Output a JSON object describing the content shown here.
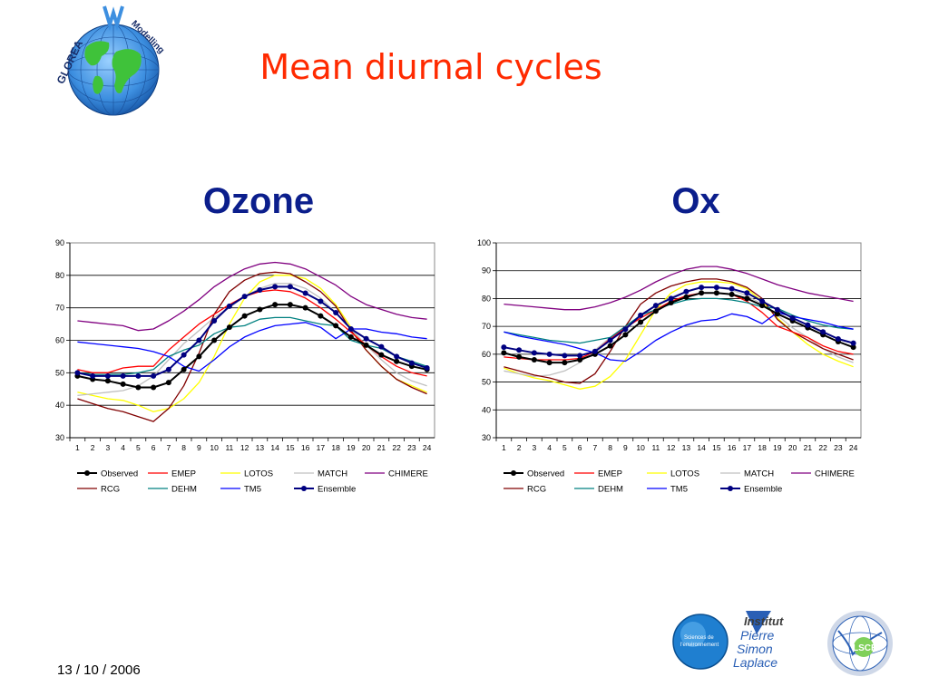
{
  "slide": {
    "title": "Mean diurnal cycles",
    "date": "13 / 10 / 2006",
    "logo_letters_left": "GLOREA",
    "logo_letters_right": "Modelling",
    "ipsl_line1": "Institut",
    "ipsl_line2": "Pierre",
    "ipsl_line3": "Simon",
    "ipsl_line4": "Laplace",
    "sde_text_1": "Sciences de",
    "sde_text_2": "l'environnement",
    "lsce_text": "LSCE"
  },
  "chart_data": [
    {
      "type": "line",
      "title": "Ozone",
      "categories": [
        "1",
        "2",
        "3",
        "4",
        "5",
        "6",
        "7",
        "8",
        "9",
        "10",
        "11",
        "12",
        "13",
        "14",
        "15",
        "16",
        "17",
        "18",
        "19",
        "20",
        "21",
        "22",
        "23",
        "24"
      ],
      "ylim": [
        30,
        90
      ],
      "yticks": [
        30,
        40,
        50,
        60,
        70,
        80,
        90
      ],
      "grid": true,
      "legend": "bottom",
      "series": [
        {
          "name": "Observed",
          "color": "#000000",
          "marker": true,
          "width": 2,
          "values": [
            49,
            48,
            47.5,
            46.5,
            45.5,
            45.5,
            47,
            51,
            55,
            60,
            64,
            67.5,
            69.5,
            71,
            71,
            70,
            67.5,
            64.5,
            61,
            58.5,
            55.5,
            53.5,
            52,
            51
          ]
        },
        {
          "name": "EMEP",
          "color": "#ff0000",
          "marker": false,
          "width": 1.3,
          "values": [
            51,
            50,
            50,
            51.5,
            52,
            52,
            57,
            61,
            65,
            68,
            71,
            73.5,
            75,
            75.5,
            75,
            73,
            70,
            66.5,
            62.5,
            58.5,
            55,
            52,
            50,
            49
          ]
        },
        {
          "name": "LOTOS",
          "color": "#ffff00",
          "marker": false,
          "width": 1.3,
          "values": [
            44,
            43,
            42,
            41.5,
            40,
            38,
            39,
            42,
            47,
            55,
            65,
            73,
            78,
            80,
            80,
            79,
            76,
            71,
            64,
            57,
            52,
            48,
            46,
            44
          ]
        },
        {
          "name": "MATCH",
          "color": "#c0c0c0",
          "marker": false,
          "width": 1.3,
          "values": [
            43,
            43.5,
            44,
            44.5,
            46,
            49,
            54,
            59,
            63,
            67,
            70,
            73.5,
            76,
            77.5,
            77.5,
            76,
            73,
            68.5,
            63.5,
            58.5,
            54,
            50,
            47.5,
            46
          ]
        },
        {
          "name": "CHIMERE",
          "color": "#800080",
          "marker": false,
          "width": 1.3,
          "values": [
            66,
            65.5,
            65,
            64.5,
            63,
            63.5,
            66,
            69,
            72.5,
            76.5,
            79.5,
            82,
            83.5,
            84,
            83.5,
            82,
            79.5,
            77,
            73.5,
            71,
            69.5,
            68,
            67,
            66.5
          ]
        },
        {
          "name": "RCG",
          "color": "#800000",
          "marker": false,
          "width": 1.3,
          "values": [
            42,
            40.5,
            39,
            38,
            36.5,
            35,
            39,
            46,
            56,
            68,
            75,
            78.5,
            80.5,
            81,
            80.5,
            78,
            75,
            70.5,
            63,
            57,
            52,
            48,
            45.5,
            43.5
          ]
        },
        {
          "name": "DEHM",
          "color": "#008080",
          "marker": false,
          "width": 1.3,
          "values": [
            50,
            49.5,
            49.5,
            49.5,
            50,
            51,
            55,
            57,
            58.5,
            62,
            64,
            64.5,
            66.5,
            67,
            67,
            66,
            65,
            64.5,
            60,
            58.5,
            57.5,
            55,
            53.5,
            52
          ]
        },
        {
          "name": "TM5",
          "color": "#0000ff",
          "marker": false,
          "width": 1.3,
          "values": [
            59.5,
            59,
            58.5,
            58,
            57.5,
            56.5,
            55,
            52,
            50.5,
            54,
            58,
            61,
            63,
            64.5,
            65,
            65.5,
            64,
            60.5,
            63.5,
            63.5,
            62.5,
            62,
            61,
            60.5
          ]
        },
        {
          "name": "Ensemble",
          "color": "#000080",
          "marker": true,
          "width": 2,
          "values": [
            50,
            49,
            49,
            49,
            49,
            49,
            51,
            55.5,
            60,
            66,
            70.5,
            73.5,
            75.5,
            76.5,
            76.5,
            74.5,
            72,
            68.5,
            63.5,
            60.5,
            58,
            55,
            53,
            51.5
          ]
        }
      ]
    },
    {
      "type": "line",
      "title": "Ox",
      "categories": [
        "1",
        "2",
        "3",
        "4",
        "5",
        "6",
        "7",
        "8",
        "9",
        "10",
        "11",
        "12",
        "13",
        "14",
        "15",
        "16",
        "17",
        "18",
        "19",
        "20",
        "21",
        "22",
        "23",
        "24"
      ],
      "ylim": [
        30,
        100
      ],
      "yticks": [
        30,
        40,
        50,
        60,
        70,
        80,
        90,
        100
      ],
      "grid": true,
      "legend": "bottom",
      "series": [
        {
          "name": "Observed",
          "color": "#000000",
          "marker": true,
          "width": 2,
          "values": [
            60.5,
            59,
            58,
            57,
            57,
            58,
            60,
            63,
            67,
            71.5,
            75.5,
            78.5,
            80.5,
            82,
            82,
            81.5,
            80,
            77.5,
            74.5,
            72,
            69.5,
            67,
            64.5,
            62.5
          ]
        },
        {
          "name": "EMEP",
          "color": "#ff0000",
          "marker": false,
          "width": 1.3,
          "values": [
            59,
            58.5,
            58,
            58,
            58,
            58.5,
            61,
            65.5,
            69.5,
            73,
            76,
            79,
            81,
            82,
            82,
            81.5,
            79,
            75,
            70,
            68,
            66,
            63,
            61,
            60
          ]
        },
        {
          "name": "LOTOS",
          "color": "#ffff00",
          "marker": false,
          "width": 1.3,
          "values": [
            55,
            53,
            51.5,
            50.5,
            49,
            47.5,
            48.5,
            52,
            58,
            67,
            76,
            82,
            85,
            86,
            86,
            85.5,
            83.5,
            79,
            73,
            68,
            63.5,
            60,
            57.5,
            55.5
          ]
        },
        {
          "name": "MATCH",
          "color": "#c0c0c0",
          "marker": false,
          "width": 1.3,
          "values": [
            54,
            53,
            52,
            52.5,
            54,
            57,
            61.5,
            66,
            70,
            74,
            77.5,
            80.5,
            82.5,
            84,
            84,
            83,
            81,
            78,
            74,
            69.5,
            66,
            62,
            59,
            57
          ]
        },
        {
          "name": "CHIMERE",
          "color": "#800080",
          "marker": false,
          "width": 1.3,
          "values": [
            78,
            77.5,
            77,
            76.5,
            76,
            76,
            77,
            78.5,
            80.5,
            83,
            86,
            88.5,
            90.5,
            91.5,
            91.5,
            90.5,
            89,
            87,
            85,
            83.5,
            82,
            81,
            80,
            79
          ]
        },
        {
          "name": "RCG",
          "color": "#800000",
          "marker": false,
          "width": 1.3,
          "values": [
            55.5,
            54,
            52.5,
            51.5,
            50,
            49.5,
            53,
            61,
            70,
            78,
            82,
            84.5,
            86,
            87,
            87,
            86,
            84,
            80,
            72.5,
            68,
            65,
            62,
            60,
            58
          ]
        },
        {
          "name": "DEHM",
          "color": "#008080",
          "marker": false,
          "width": 1.3,
          "values": [
            68,
            67,
            66,
            65,
            64.5,
            64,
            65,
            66,
            70,
            74,
            76,
            78,
            79.5,
            80,
            80,
            79.5,
            78.5,
            77,
            76.5,
            74,
            72,
            70.5,
            69.5,
            69
          ]
        },
        {
          "name": "TM5",
          "color": "#0000ff",
          "marker": false,
          "width": 1.3,
          "values": [
            68,
            66.5,
            65.5,
            64.5,
            63.5,
            62,
            60.5,
            58,
            57.5,
            61,
            65,
            68,
            70.5,
            72,
            72.5,
            74.5,
            73.5,
            71,
            75,
            73.5,
            72.5,
            71.5,
            70,
            69
          ]
        },
        {
          "name": "Ensemble",
          "color": "#000080",
          "marker": true,
          "width": 2,
          "values": [
            62.5,
            61.5,
            60.5,
            60,
            59.5,
            59.5,
            61,
            65,
            69,
            74,
            77.5,
            80,
            82.5,
            84,
            84,
            83.5,
            82,
            79,
            76,
            73,
            70.5,
            68,
            65.5,
            64
          ]
        }
      ]
    }
  ]
}
